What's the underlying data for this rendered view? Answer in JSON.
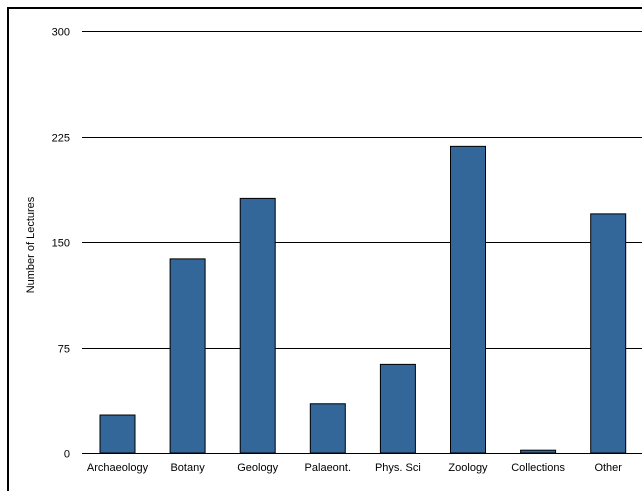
{
  "chart_data": {
    "type": "bar",
    "categories": [
      "Archaeology",
      "Botany",
      "Geology",
      "Palaeont.",
      "Phys. Sci",
      "Zoology",
      "Collections",
      "Other"
    ],
    "values": [
      27,
      138,
      181,
      35,
      63,
      218,
      2,
      170
    ],
    "title": "",
    "xlabel": "",
    "ylabel": "Number of Lectures",
    "ylim": [
      0,
      300
    ],
    "yticks": [
      0,
      75,
      150,
      225,
      300
    ],
    "grid": true,
    "bar_color": "#336699",
    "legend": "none"
  }
}
